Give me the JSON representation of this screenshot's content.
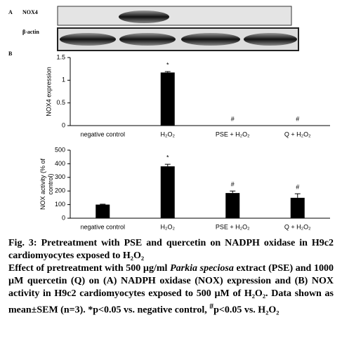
{
  "blot": {
    "panel": "A",
    "labels": [
      "NOX4",
      "β-actin"
    ]
  },
  "panel_b": "B",
  "chart_data": [
    {
      "type": "bar",
      "y_label": "NOX4 expression",
      "categories": [
        "negative control",
        "H₂O₂",
        "PSE + H₂O₂",
        "Q + H₂O₂"
      ],
      "values": [
        0,
        1.17,
        0,
        0
      ],
      "errors": [
        0,
        0.02,
        0,
        0
      ],
      "annotations": [
        null,
        "*",
        "#",
        "#"
      ],
      "color": "#000000",
      "ylim": [
        0,
        1.5
      ],
      "yticks": [
        0,
        0.5,
        1,
        1.5
      ]
    },
    {
      "type": "bar",
      "y_label": [
        "NOX activity (% of",
        "control)"
      ],
      "categories": [
        "negative control",
        "H₂O₂",
        "PSE + H₂O₂",
        "Q + H₂O₂"
      ],
      "values": [
        100,
        381,
        185,
        150
      ],
      "errors": [
        3,
        15,
        15,
        30
      ],
      "annotations": [
        null,
        "*",
        "#",
        "#"
      ],
      "color": "#000000",
      "ylim": [
        0,
        500
      ],
      "yticks": [
        0,
        100,
        200,
        300,
        400,
        500
      ]
    }
  ],
  "caption": {
    "title": "Fig. 3: Pretreatment with PSE and quercetin on NADPH oxidase in H9c2 cardiomyocytes exposed to H₂O₂",
    "body": [
      "Effect of pretreatment with 500 µg/ml ",
      "Parkia speciosa",
      " extract (PSE) and 1000 µM quercetin (Q) on (A) NADPH oxidase (NOX) expression and (B) NOX activity in H9c2 cardiomyocytes exposed to 500 µM of H₂O₂. Data shown as mean±SEM (n=3). *p<0.05 vs. negative control, ",
      "#",
      "p<0.05 vs. H₂O₂"
    ]
  }
}
